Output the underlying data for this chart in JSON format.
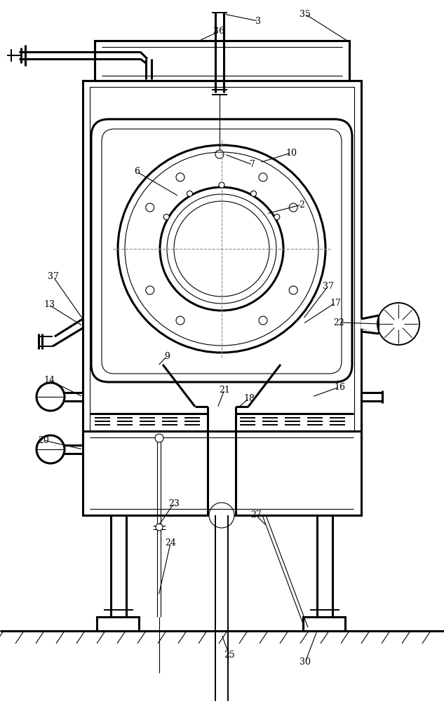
{
  "bg": "#ffffff",
  "lc": "#000000",
  "fig_w": 6.33,
  "fig_h": 10.0,
  "dpi": 100,
  "lw_thin": 0.8,
  "lw_med": 1.4,
  "lw_thick": 2.2
}
